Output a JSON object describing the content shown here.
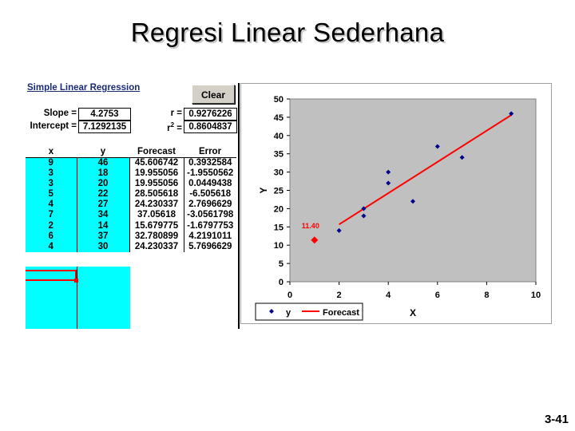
{
  "slide": {
    "title": "Regresi Linear Sederhana",
    "page_number": "3-41"
  },
  "sheet": {
    "title": "Simple Linear Regression",
    "clear_label": "Clear",
    "slope_label": "Slope =",
    "slope_value": "4.2753",
    "intercept_label": "Intercept =",
    "intercept_value": "7.1292135",
    "r_label": "r =",
    "r_value": "0.9276226",
    "r2_label": "r",
    "r2_sup": "2",
    "r2_eq": " =",
    "r2_value": "0.8604837",
    "columns": [
      "x",
      "y",
      "Forecast",
      "Error"
    ],
    "rows": [
      [
        "9",
        "46",
        "45.606742",
        "0.3932584"
      ],
      [
        "3",
        "18",
        "19.955056",
        "-1.9550562"
      ],
      [
        "3",
        "20",
        "19.955056",
        "0.0449438"
      ],
      [
        "5",
        "22",
        "28.505618",
        "-6.505618"
      ],
      [
        "4",
        "27",
        "24.230337",
        "2.7696629"
      ],
      [
        "7",
        "34",
        "37.05618",
        "-3.0561798"
      ],
      [
        "2",
        "14",
        "15.679775",
        "-1.6797753"
      ],
      [
        "6",
        "37",
        "32.780899",
        "4.2191011"
      ],
      [
        "4",
        "30",
        "24.230337",
        "5.7696629"
      ]
    ]
  },
  "chart_data": {
    "type": "scatter",
    "xlabel": "X",
    "ylabel": "Y",
    "xlim": [
      0,
      10
    ],
    "ylim": [
      0,
      50
    ],
    "x_ticks": [
      0,
      2,
      4,
      6,
      8,
      10
    ],
    "y_ticks": [
      0,
      5,
      10,
      15,
      20,
      25,
      30,
      35,
      40,
      45,
      50
    ],
    "series": [
      {
        "name": "y",
        "type": "scatter",
        "color": "#00008b",
        "points": [
          [
            9,
            46
          ],
          [
            3,
            18
          ],
          [
            3,
            20
          ],
          [
            5,
            22
          ],
          [
            4,
            27
          ],
          [
            7,
            34
          ],
          [
            2,
            14
          ],
          [
            6,
            37
          ],
          [
            4,
            30
          ]
        ]
      },
      {
        "name": "Forecast",
        "type": "line",
        "color": "#ff0000",
        "points": [
          [
            2,
            15.679775
          ],
          [
            9,
            45.606742
          ]
        ]
      }
    ],
    "forecast_point": {
      "x": 1,
      "y": 11.4,
      "label": "11.40",
      "color": "#ff0000"
    },
    "plot_background": "#c0c0c0",
    "legend_position": "bottom-left"
  }
}
